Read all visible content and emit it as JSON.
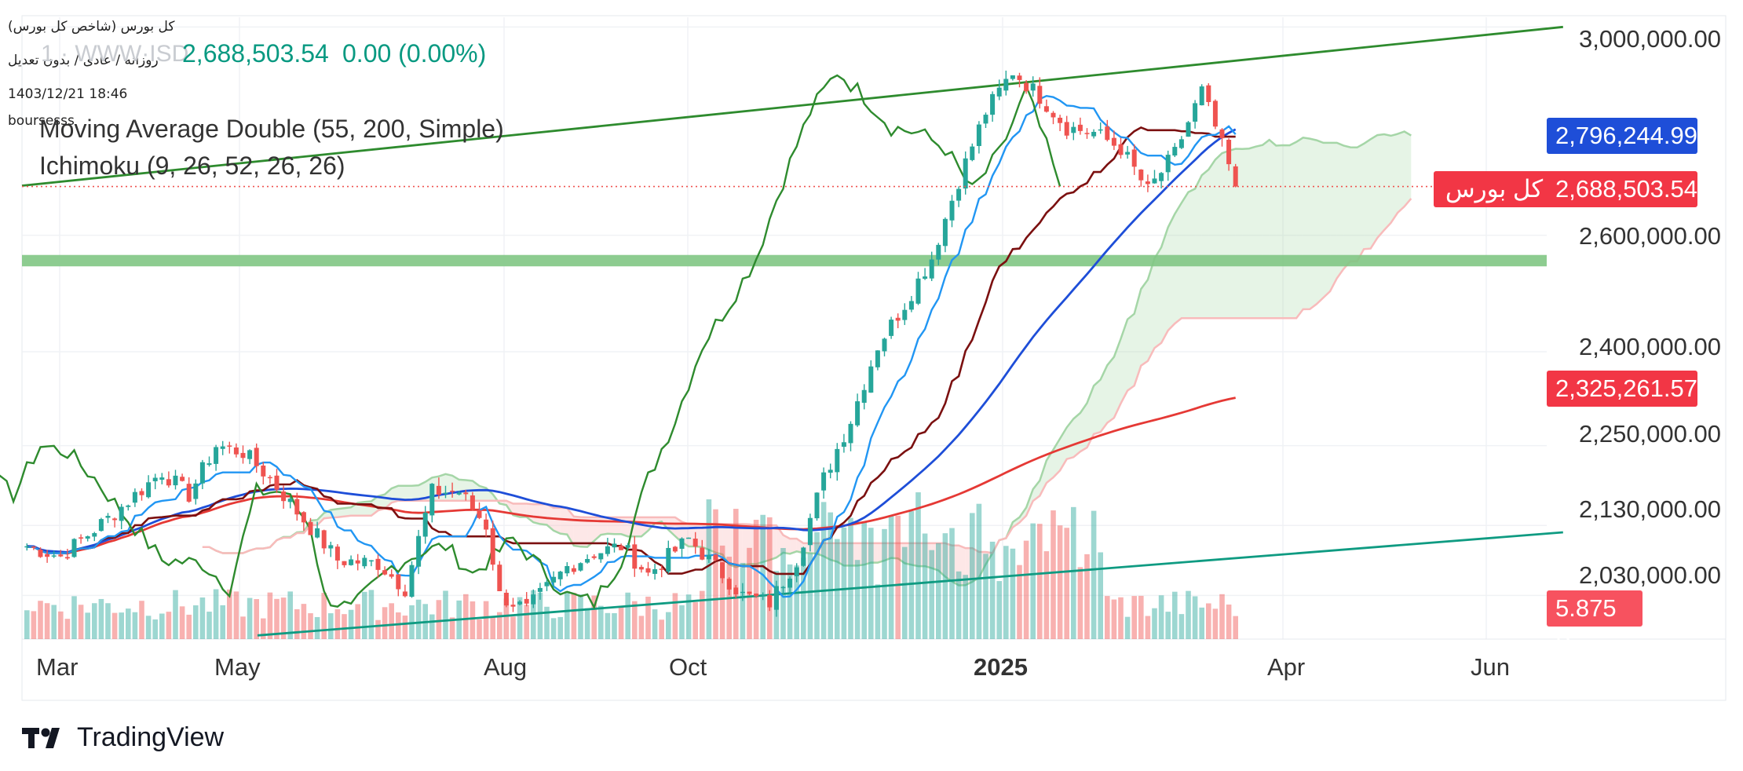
{
  "header": {
    "symbol_name": "کل بورس (شاخص کل بورس)",
    "interval_line": "روزانه / عادی / بدون تعدیل",
    "datetime": "1403/12/21 18:46",
    "author": "boursesss",
    "ghost_symbol": "1 · WWW·ISD",
    "last_price": "2,688,503.54",
    "change": "0.00 (0.00%)"
  },
  "indicators": {
    "ma_label": "Moving Average Double (55, 200, Simple)",
    "ichimoku_label": "Ichimoku (9, 26, 52, 26, 26)"
  },
  "price_axis": {
    "ticks": [
      {
        "value": 3000000,
        "label": "3,000,000.00"
      },
      {
        "value": 2600000,
        "label": "2,600,000.00"
      },
      {
        "value": 2400000,
        "label": "2,400,000.00"
      },
      {
        "value": 2250000,
        "label": "2,250,000.00"
      },
      {
        "value": 2130000,
        "label": "2,130,000.00"
      },
      {
        "value": 2030000,
        "label": "2,030,000.00"
      }
    ]
  },
  "price_tags": {
    "ma55": {
      "value": "2,796,244.99",
      "color": "#1e4ed8"
    },
    "last": {
      "value": "2,688,503.54",
      "name": "کل بورس",
      "color": "#f23645"
    },
    "ma200": {
      "value": "2,325,261.57",
      "color": "#f23645"
    },
    "volume": {
      "value": "5.875 B",
      "color": "#f7525f"
    }
  },
  "time_axis": {
    "labels": [
      {
        "label": "Mar",
        "bold": false
      },
      {
        "label": "May",
        "bold": false
      },
      {
        "label": "Aug",
        "bold": false
      },
      {
        "label": "Oct",
        "bold": false
      },
      {
        "label": "2025",
        "bold": true
      },
      {
        "label": "Apr",
        "bold": false
      },
      {
        "label": "Jun",
        "bold": false
      }
    ]
  },
  "brand": {
    "name": "TradingView"
  },
  "colors": {
    "up": "#26a69a",
    "down": "#ef5350",
    "ma55": "#1e4ed8",
    "ma200": "#e53935",
    "tenkan": "#2196f3",
    "kijun": "#7b1010",
    "lagging": "#2e8b2e",
    "cloud_bull": "#a5d6a7",
    "cloud_bear": "#f8bbbb",
    "support_zone": "#81c784",
    "trend_top": "#2e8b2e",
    "trend_bottom": "#0f9b82"
  },
  "chart_data": {
    "type": "candlestick",
    "title": "کل بورس (شاخص کل بورس)",
    "interval": "daily",
    "scale": "log",
    "ylim": [
      1970000,
      3020000
    ],
    "x_periods": [
      "Mar",
      "May",
      "Aug",
      "Oct",
      "2025",
      "Apr",
      "Jun"
    ],
    "close_anchors": [
      {
        "x": 0,
        "close": 2100000
      },
      {
        "x": 5,
        "close": 2085000
      },
      {
        "x": 12,
        "close": 2140000
      },
      {
        "x": 20,
        "close": 2210000
      },
      {
        "x": 24,
        "close": 2175000
      },
      {
        "x": 28,
        "close": 2250000
      },
      {
        "x": 32,
        "close": 2240000
      },
      {
        "x": 36,
        "close": 2200000
      },
      {
        "x": 40,
        "close": 2150000
      },
      {
        "x": 46,
        "close": 2080000
      },
      {
        "x": 52,
        "close": 2075000
      },
      {
        "x": 56,
        "close": 2040000
      },
      {
        "x": 60,
        "close": 2180000
      },
      {
        "x": 64,
        "close": 2180000
      },
      {
        "x": 68,
        "close": 2130000
      },
      {
        "x": 70,
        "close": 2030000
      },
      {
        "x": 74,
        "close": 2010000
      },
      {
        "x": 80,
        "close": 2070000
      },
      {
        "x": 84,
        "close": 2090000
      },
      {
        "x": 88,
        "close": 2100000
      },
      {
        "x": 92,
        "close": 2060000
      },
      {
        "x": 98,
        "close": 2110000
      },
      {
        "x": 102,
        "close": 2070000
      },
      {
        "x": 106,
        "close": 2030000
      },
      {
        "x": 110,
        "close": 2020000
      },
      {
        "x": 114,
        "close": 2080000
      },
      {
        "x": 118,
        "close": 2200000
      },
      {
        "x": 122,
        "close": 2290000
      },
      {
        "x": 126,
        "close": 2410000
      },
      {
        "x": 130,
        "close": 2480000
      },
      {
        "x": 134,
        "close": 2560000
      },
      {
        "x": 138,
        "close": 2700000
      },
      {
        "x": 142,
        "close": 2830000
      },
      {
        "x": 146,
        "close": 2910000
      },
      {
        "x": 150,
        "close": 2860000
      },
      {
        "x": 154,
        "close": 2800000
      },
      {
        "x": 158,
        "close": 2790000
      },
      {
        "x": 162,
        "close": 2760000
      },
      {
        "x": 166,
        "close": 2680000
      },
      {
        "x": 170,
        "close": 2750000
      },
      {
        "x": 174,
        "close": 2870000
      },
      {
        "x": 176,
        "close": 2800000
      },
      {
        "x": 179,
        "close": 2688503.54
      }
    ],
    "moving_average_55_last": 2796244.99,
    "moving_average_200_last": 2325261.57,
    "last_price": 2688503.54,
    "last_volume": "5.875 B",
    "support_zone": [
      2545000,
      2565000
    ],
    "trendline_top": [
      [
        0,
        2690000
      ],
      [
        228,
        3000000
      ]
    ],
    "trendline_bottom": [
      [
        30,
        1975000
      ],
      [
        228,
        2120000
      ]
    ]
  }
}
